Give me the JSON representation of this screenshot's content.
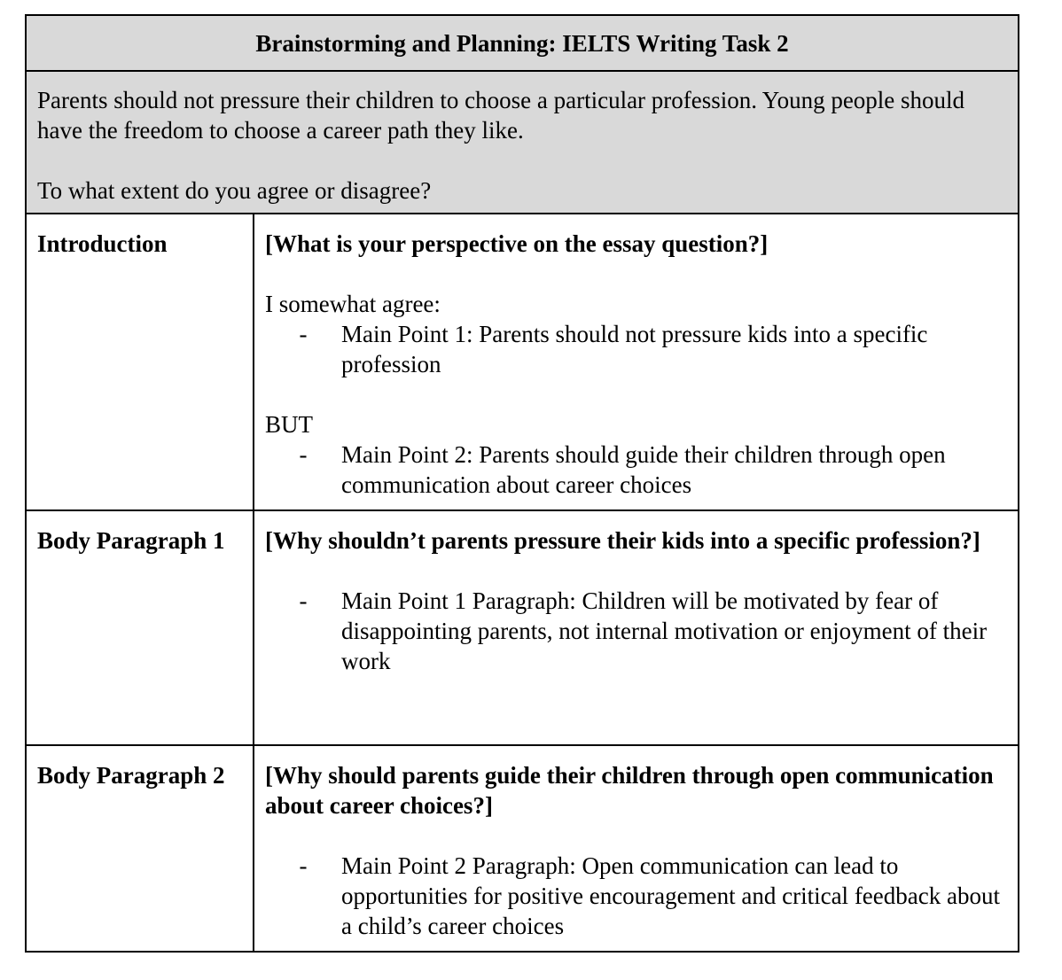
{
  "title": "Brainstorming and Planning:  IELTS Writing Task 2",
  "prompt": {
    "statement": "Parents should not pressure their children to choose a particular profession. Young people should have the freedom to choose a career path they like.",
    "question": "To what extent do you agree or disagree?"
  },
  "rows": [
    {
      "label": "Introduction",
      "question": "[What is your perspective on the essay question?]",
      "line1": "I somewhat agree:",
      "bullet1": "Main Point 1: Parents should not pressure kids into a specific profession",
      "line2": "BUT",
      "bullet2": "Main Point 2: Parents should guide their children through open communication about career choices"
    },
    {
      "label": "Body Paragraph 1",
      "question": "[Why shouldn’t parents pressure their kids into a specific profession?]",
      "bullet1": "Main Point 1 Paragraph: Children will be motivated by fear of disappointing parents, not internal motivation or enjoyment of their work"
    },
    {
      "label": "Body Paragraph 2",
      "question": "[Why should parents guide their children through open communication about career choices?]",
      "bullet1": "Main Point 2 Paragraph: Open communication can lead to opportunities for positive encouragement and critical feedback about a child’s career choices"
    }
  ],
  "dash": "-",
  "colors": {
    "header_bg": "#d9d9d9",
    "border": "#000000"
  }
}
